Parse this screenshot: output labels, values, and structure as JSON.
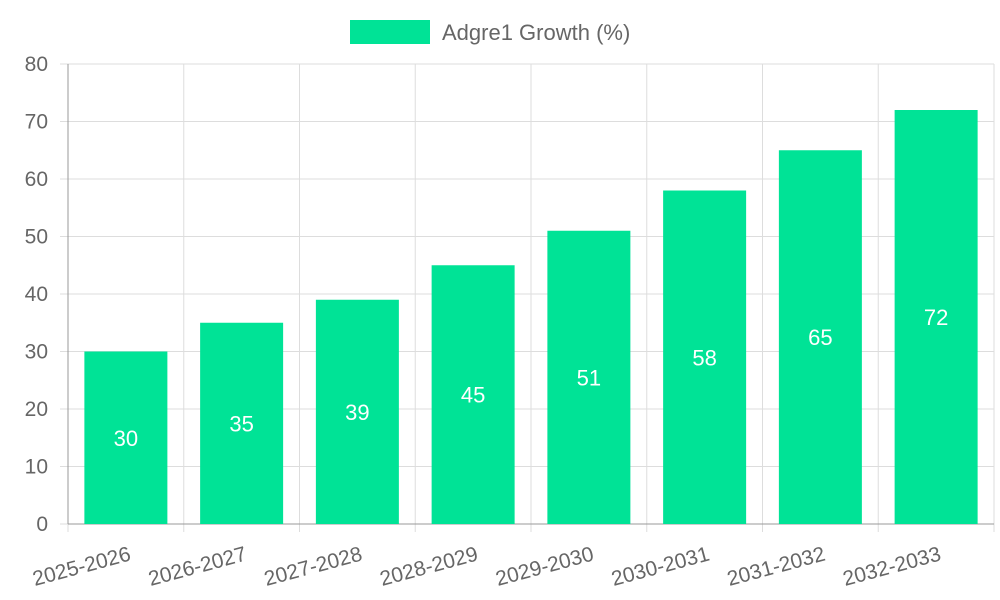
{
  "chart_data": {
    "type": "bar",
    "categories": [
      "2025-2026",
      "2026-2027",
      "2027-2028",
      "2028-2029",
      "2029-2030",
      "2030-2031",
      "2031-2032",
      "2032-2033"
    ],
    "series": [
      {
        "name": "Adgre1 Growth (%)",
        "values": [
          30,
          35,
          39,
          45,
          51,
          58,
          65,
          72
        ],
        "color": "#00e396"
      }
    ],
    "ylim": [
      0,
      80
    ],
    "yticks": [
      0,
      10,
      20,
      30,
      40,
      50,
      60,
      70,
      80
    ],
    "grid": true,
    "legend_position": "top-center",
    "data_labels": true,
    "grid_color": "#dddddd",
    "axis_color": "#999999",
    "text_color": "#666666"
  }
}
